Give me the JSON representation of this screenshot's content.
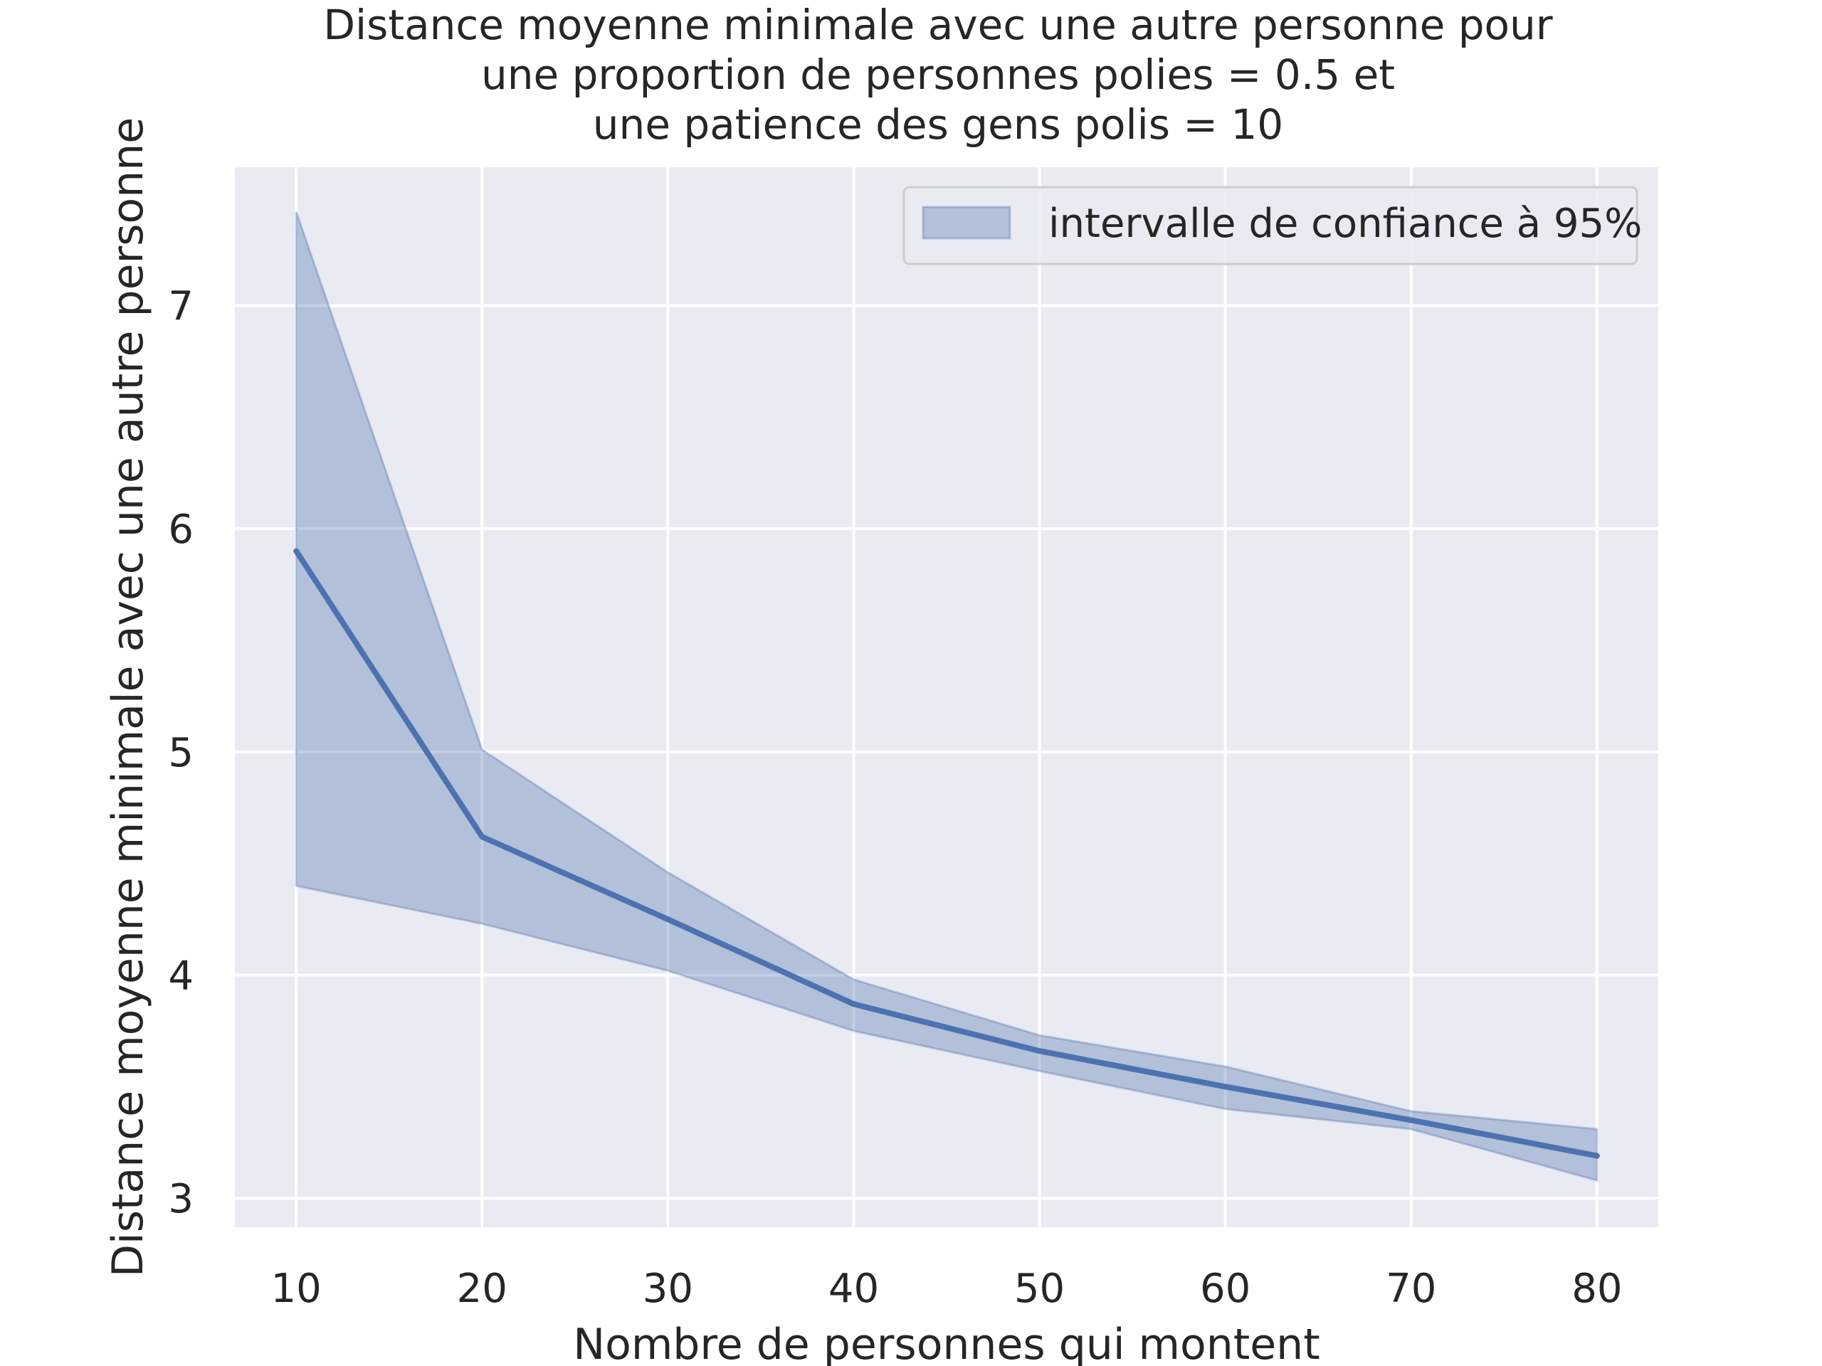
{
  "chart_data": {
    "type": "line",
    "title": [
      "Distance moyenne minimale avec une autre personne pour",
      "une proportion de personnes polies = 0.5 et",
      "une patience des gens polis = 10"
    ],
    "xlabel": "Nombre de personnes qui montent",
    "ylabel": "Distance moyenne minimale avec une autre personne",
    "xlim": [
      6.7,
      83.3
    ],
    "ylim": [
      2.87,
      7.62
    ],
    "x_ticks": [
      10,
      20,
      30,
      40,
      50,
      60,
      70,
      80
    ],
    "y_ticks": [
      3,
      4,
      5,
      6,
      7
    ],
    "grid": true,
    "legend": {
      "position": "top-right",
      "entries": [
        "intervalle de confiance à 95%"
      ]
    },
    "colors": {
      "line": "#4c72b0",
      "band": "#4c72b0",
      "background": "#eaeaf2",
      "grid": "#ffffff"
    },
    "series": [
      {
        "x": [
          10,
          20,
          30,
          40,
          50,
          60,
          70,
          80
        ],
        "mean": [
          5.9,
          4.62,
          4.25,
          3.87,
          3.66,
          3.5,
          3.35,
          3.19
        ],
        "ci_lower": [
          4.4,
          4.23,
          4.02,
          3.75,
          3.57,
          3.4,
          3.31,
          3.08
        ],
        "ci_upper": [
          7.42,
          5.01,
          4.46,
          3.98,
          3.73,
          3.59,
          3.39,
          3.31
        ]
      }
    ]
  }
}
